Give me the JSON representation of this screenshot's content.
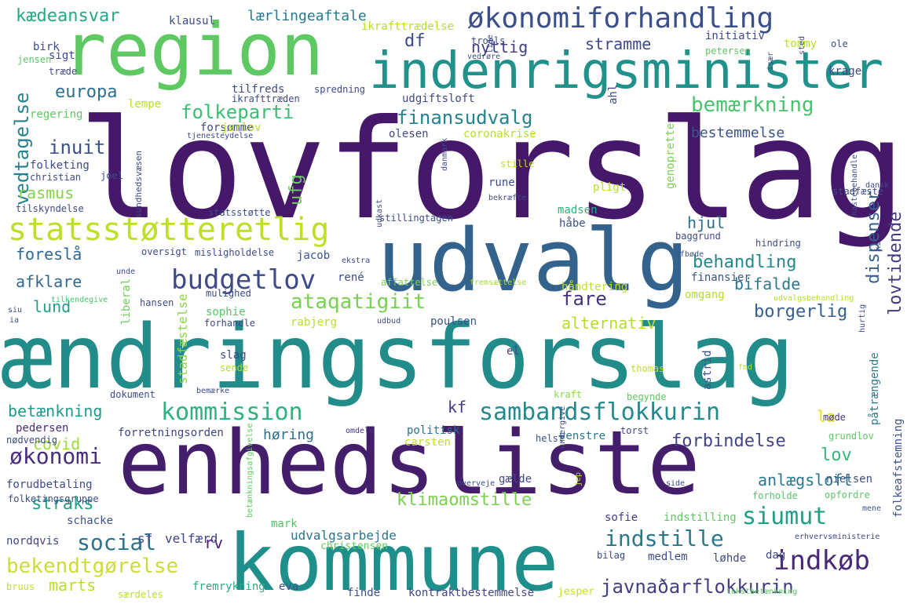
{
  "words": [
    {
      "text": "lovforslag",
      "color": "#46186a"
    },
    {
      "text": "ændringsforslag",
      "color": "#218c8a"
    },
    {
      "text": "enhedsliste",
      "color": "#441e6a"
    },
    {
      "text": "kommune",
      "color": "#1f8f8c"
    },
    {
      "text": "region",
      "color": "#5ec962"
    },
    {
      "text": "udvalg",
      "color": "#33638d"
    },
    {
      "text": "indenrigsminister",
      "color": "#21918c"
    },
    {
      "text": "økonomiforhandling",
      "color": "#3b4f8a"
    },
    {
      "text": "statsstøtteretlig",
      "color": "#bddf26"
    },
    {
      "text": "sambandsflokkurin",
      "color": "#238a8d"
    },
    {
      "text": "budgetlov",
      "color": "#3e4a89"
    },
    {
      "text": "kommission",
      "color": "#2db27d"
    },
    {
      "text": "indkøb",
      "color": "#482878"
    },
    {
      "text": "javnaðarflokkurin",
      "color": "#433e85"
    },
    {
      "text": "bekendtgørelse",
      "color": "#cddc39"
    },
    {
      "text": "siumut",
      "color": "#1fa187"
    },
    {
      "text": "indstille",
      "color": "#2a788e"
    },
    {
      "text": "social",
      "color": "#2c728e"
    },
    {
      "text": "økonomi",
      "color": "#472d7b"
    },
    {
      "text": "folkeparti",
      "color": "#3dbc74"
    },
    {
      "text": "bemærkning",
      "color": "#4ac16d"
    },
    {
      "text": "finansudvalg",
      "color": "#25838e"
    },
    {
      "text": "europa",
      "color": "#2d708e"
    },
    {
      "text": "inuit",
      "color": "#3b528b"
    },
    {
      "text": "vedtagelse",
      "color": "#26828e"
    },
    {
      "text": "ataqatigiit",
      "color": "#7ad151"
    },
    {
      "text": "behandling",
      "color": "#23898e"
    },
    {
      "text": "lovtidende",
      "color": "#443a83"
    },
    {
      "text": "borgerlig",
      "color": "#355f8d"
    },
    {
      "text": "fare",
      "color": "#46337e"
    },
    {
      "text": "alternativ",
      "color": "#b5de2b"
    },
    {
      "text": "forbindelse",
      "color": "#414487"
    },
    {
      "text": "anlægsloft",
      "color": "#2a788e"
    },
    {
      "text": "lov",
      "color": "#35b779"
    },
    {
      "text": "klimaomstille",
      "color": "#7ad151"
    },
    {
      "text": "betænkning",
      "color": "#1e9b8a"
    },
    {
      "text": "kædeansvar",
      "color": "#22a884"
    },
    {
      "text": "lærlingeaftale",
      "color": "#2a788e"
    },
    {
      "text": "straks",
      "color": "#1fa187"
    },
    {
      "text": "marts",
      "color": "#b8de29"
    },
    {
      "text": "dispenser",
      "color": "#355f8d"
    },
    {
      "text": "bestemmelse",
      "color": "#3b528b"
    },
    {
      "text": "foreslå",
      "color": "#31688e"
    },
    {
      "text": "afklare",
      "color": "#31688e"
    },
    {
      "text": "lund",
      "color": "#1f9e89"
    },
    {
      "text": "rasmus",
      "color": "#84d44b"
    },
    {
      "text": "covid",
      "color": "#9fda3a"
    },
    {
      "text": "nyttig",
      "color": "#433e85"
    },
    {
      "text": "stramme",
      "color": "#3e4989"
    },
    {
      "text": "df",
      "color": "#3e4989"
    },
    {
      "text": "ufg",
      "color": "#6ece58"
    },
    {
      "text": "hjul",
      "color": "#2e6e8e"
    },
    {
      "text": "bifalde",
      "color": "#2a788e"
    },
    {
      "text": "kf",
      "color": "#453781"
    },
    {
      "text": "la",
      "color": "#dde318"
    },
    {
      "text": "høring",
      "color": "#2d708e"
    },
    {
      "text": "sf",
      "color": "#3e4a89"
    },
    {
      "text": "rv",
      "color": "#482173"
    },
    {
      "text": "velfærd",
      "color": "#414487"
    },
    {
      "text": "udvalgsarbejde",
      "color": "#2b758e"
    },
    {
      "text": "forretningsorden",
      "color": "#414487"
    },
    {
      "text": "politisk",
      "color": "#2d708e"
    },
    {
      "text": "carsten",
      "color": "#c0df25"
    },
    {
      "text": "venstre",
      "color": "#2a788e"
    },
    {
      "text": "torst",
      "color": "#3f4788"
    },
    {
      "text": "nielsen",
      "color": "#3b528b"
    },
    {
      "text": "indstilling",
      "color": "#5ec962"
    },
    {
      "text": "sofie",
      "color": "#433e85"
    },
    {
      "text": "forudbetaling",
      "color": "#3e4a89"
    },
    {
      "text": "schacke",
      "color": "#3b528b"
    },
    {
      "text": "mark",
      "color": "#52c569"
    },
    {
      "text": "christensen",
      "color": "#65cb5e"
    },
    {
      "text": "nordqvis",
      "color": "#404688"
    },
    {
      "text": "medlem",
      "color": "#3e4a89"
    },
    {
      "text": "løhde",
      "color": "#404688"
    },
    {
      "text": "dag",
      "color": "#404688"
    },
    {
      "text": "bilag",
      "color": "#3f4889"
    },
    {
      "text": "fremrykning",
      "color": "#27ad81"
    },
    {
      "text": "eva",
      "color": "#3b528b"
    },
    {
      "text": "finde",
      "color": "#3b528b"
    },
    {
      "text": "kontraktbestemmelse",
      "color": "#404688"
    },
    {
      "text": "jesper",
      "color": "#c8e020"
    },
    {
      "text": "særdeles",
      "color": "#b5de2b"
    },
    {
      "text": "bruus",
      "color": "#c2df23"
    },
    {
      "text": "folkeafstemning",
      "color": "#3b528b"
    },
    {
      "text": "grundlov",
      "color": "#5ec962"
    },
    {
      "text": "påtrængende",
      "color": "#2a788e"
    },
    {
      "text": "møde",
      "color": "#46327e"
    },
    {
      "text": "opfordre",
      "color": "#5ec962"
    },
    {
      "text": "forholde",
      "color": "#52c569"
    },
    {
      "text": "mene",
      "color": "#3b528b"
    },
    {
      "text": "pedersen",
      "color": "#472c7a"
    },
    {
      "text": "omdele",
      "color": "#46337e"
    },
    {
      "text": "nødvendig",
      "color": "#3e4a89"
    },
    {
      "text": "helst",
      "color": "#3b528b"
    },
    {
      "text": "undergive",
      "color": "#404688"
    },
    {
      "text": "dokument",
      "color": "#3e4a89"
    },
    {
      "text": "bemærke",
      "color": "#3e4a89"
    },
    {
      "text": "kraft",
      "color": "#86d549"
    },
    {
      "text": "begynde",
      "color": "#5ec962"
    },
    {
      "text": "thomas",
      "color": "#c2df23"
    },
    {
      "text": "stadfæstelse",
      "color": "#8bd646"
    },
    {
      "text": "sende",
      "color": "#addc30"
    },
    {
      "text": "slag",
      "color": "#3e4a89"
    },
    {
      "text": "el",
      "color": "#404688"
    },
    {
      "text": "astrid",
      "color": "#3b528b"
    },
    {
      "text": "fmd",
      "color": "#b8de29"
    },
    {
      "text": "rabjerg",
      "color": "#b5de2b"
    },
    {
      "text": "poulsen",
      "color": "#3b528b"
    },
    {
      "text": "udbud",
      "color": "#3e4a89"
    },
    {
      "text": "forhandle",
      "color": "#3f4889"
    },
    {
      "text": "sophie",
      "color": "#52c569"
    },
    {
      "text": "hansen",
      "color": "#3e4a89"
    },
    {
      "text": "liberal",
      "color": "#6ece58"
    },
    {
      "text": "tilkendegive",
      "color": "#4ac16d"
    },
    {
      "text": "siu",
      "color": "#3e4a89"
    },
    {
      "text": "ia",
      "color": "#3e4a89"
    },
    {
      "text": "håndtering",
      "color": "#c0df25"
    },
    {
      "text": "omgang",
      "color": "#b5de2b"
    },
    {
      "text": "finansier",
      "color": "#3b528b"
    },
    {
      "text": "mulighed",
      "color": "#3e4a89"
    },
    {
      "text": "affattelse",
      "color": "#7ad151"
    },
    {
      "text": "fremsættelse",
      "color": "#a8db34"
    },
    {
      "text": "rené",
      "color": "#3e4a89"
    },
    {
      "text": "ekstra",
      "color": "#3e4a89"
    },
    {
      "text": "jacob",
      "color": "#3b528b"
    },
    {
      "text": "oversigt",
      "color": "#3e4a89"
    },
    {
      "text": "misligholdelse",
      "color": "#3e4a89"
    },
    {
      "text": "unde",
      "color": "#3e4a89"
    },
    {
      "text": "afbøde",
      "color": "#3b528b"
    },
    {
      "text": "hindring",
      "color": "#3e4a89"
    },
    {
      "text": "baggrund",
      "color": "#3e4a89"
    },
    {
      "text": "udvalgsbehandling",
      "color": "#b5de2b"
    },
    {
      "text": "hurtig",
      "color": "#3e4a89"
    },
    {
      "text": "tilskyndelse",
      "color": "#3e4a89"
    },
    {
      "text": "statsstøtte",
      "color": "#3e4a89"
    },
    {
      "text": "stillingtagen",
      "color": "#3e4a89"
    },
    {
      "text": "madsen",
      "color": "#2db27d"
    },
    {
      "text": "håbe",
      "color": "#3b528b"
    },
    {
      "text": "udkast",
      "color": "#3e4a89"
    },
    {
      "text": "rune",
      "color": "#3e4a89"
    },
    {
      "text": "bekræfte",
      "color": "#3e4a89"
    },
    {
      "text": "pligt",
      "color": "#b5de2b"
    },
    {
      "text": "genoprette",
      "color": "#7ad151"
    },
    {
      "text": "stadfæste",
      "color": "#3e4a89"
    },
    {
      "text": "hastebehandle",
      "color": "#3e4a89"
    },
    {
      "text": "ki",
      "color": "#3e4a89"
    },
    {
      "text": "dansk",
      "color": "#3e4a89"
    },
    {
      "text": "folketing",
      "color": "#3e4a89"
    },
    {
      "text": "christian",
      "color": "#3e4a89"
    },
    {
      "text": "joel",
      "color": "#3e4a89"
    },
    {
      "text": "sundhedsvæsen",
      "color": "#3e4a89"
    },
    {
      "text": "regering",
      "color": "#5ec962"
    },
    {
      "text": "lempe",
      "color": "#b5de2b"
    },
    {
      "text": "forsømme",
      "color": "#3e4a89"
    },
    {
      "text": "jarlov",
      "color": "#b5de2b"
    },
    {
      "text": "olesen",
      "color": "#3e4a89"
    },
    {
      "text": "coronakrise",
      "color": "#b5de2b"
    },
    {
      "text": "danmark",
      "color": "#3e4a89"
    },
    {
      "text": "stille",
      "color": "#b5de2b"
    },
    {
      "text": "tjenesteydelse",
      "color": "#3e4a89"
    },
    {
      "text": "tilfreds",
      "color": "#3e4a89"
    },
    {
      "text": "spredning",
      "color": "#3e4a89"
    },
    {
      "text": "ikrafttræden",
      "color": "#3e4a89"
    },
    {
      "text": "udgiftsloft",
      "color": "#3e4a89"
    },
    {
      "text": "ahl",
      "color": "#3e4a89"
    },
    {
      "text": "birk",
      "color": "#3e4a89"
    },
    {
      "text": "sigt",
      "color": "#3e4a89"
    },
    {
      "text": "træde",
      "color": "#3e4a89"
    },
    {
      "text": "jensen",
      "color": "#5ec962"
    },
    {
      "text": "klausul",
      "color": "#3e4a89"
    },
    {
      "text": "ikrafttrædelse",
      "color": "#b5de2b"
    },
    {
      "text": "troels",
      "color": "#3e4a89"
    },
    {
      "text": "initiativ",
      "color": "#3e4a89"
    },
    {
      "text": "tommy",
      "color": "#b5de2b"
    },
    {
      "text": "ole",
      "color": "#3e4a89"
    },
    {
      "text": "krage",
      "color": "#3e4a89"
    },
    {
      "text": "petersen",
      "color": "#5ec962"
    },
    {
      "text": "vedrøre",
      "color": "#3e4a89"
    },
    {
      "text": "lide",
      "color": "#3e4a89"
    },
    {
      "text": "især",
      "color": "#3e4a89"
    },
    {
      "text": "sted",
      "color": "#3e4a89"
    },
    {
      "text": "side",
      "color": "#3e4a89"
    },
    {
      "text": "overveje",
      "color": "#3e4a89"
    },
    {
      "text": "jep",
      "color": "#b5de2b"
    },
    {
      "text": "gælde",
      "color": "#3e4a89"
    },
    {
      "text": "folketingsgruppe",
      "color": "#3e4a89"
    },
    {
      "text": "betænkningsafgivelse",
      "color": "#5ec962"
    },
    {
      "text": "erhvervsministerie",
      "color": "#3e4a89"
    },
    {
      "text": "tekstbetænkning",
      "color": "#5ec962"
    }
  ]
}
